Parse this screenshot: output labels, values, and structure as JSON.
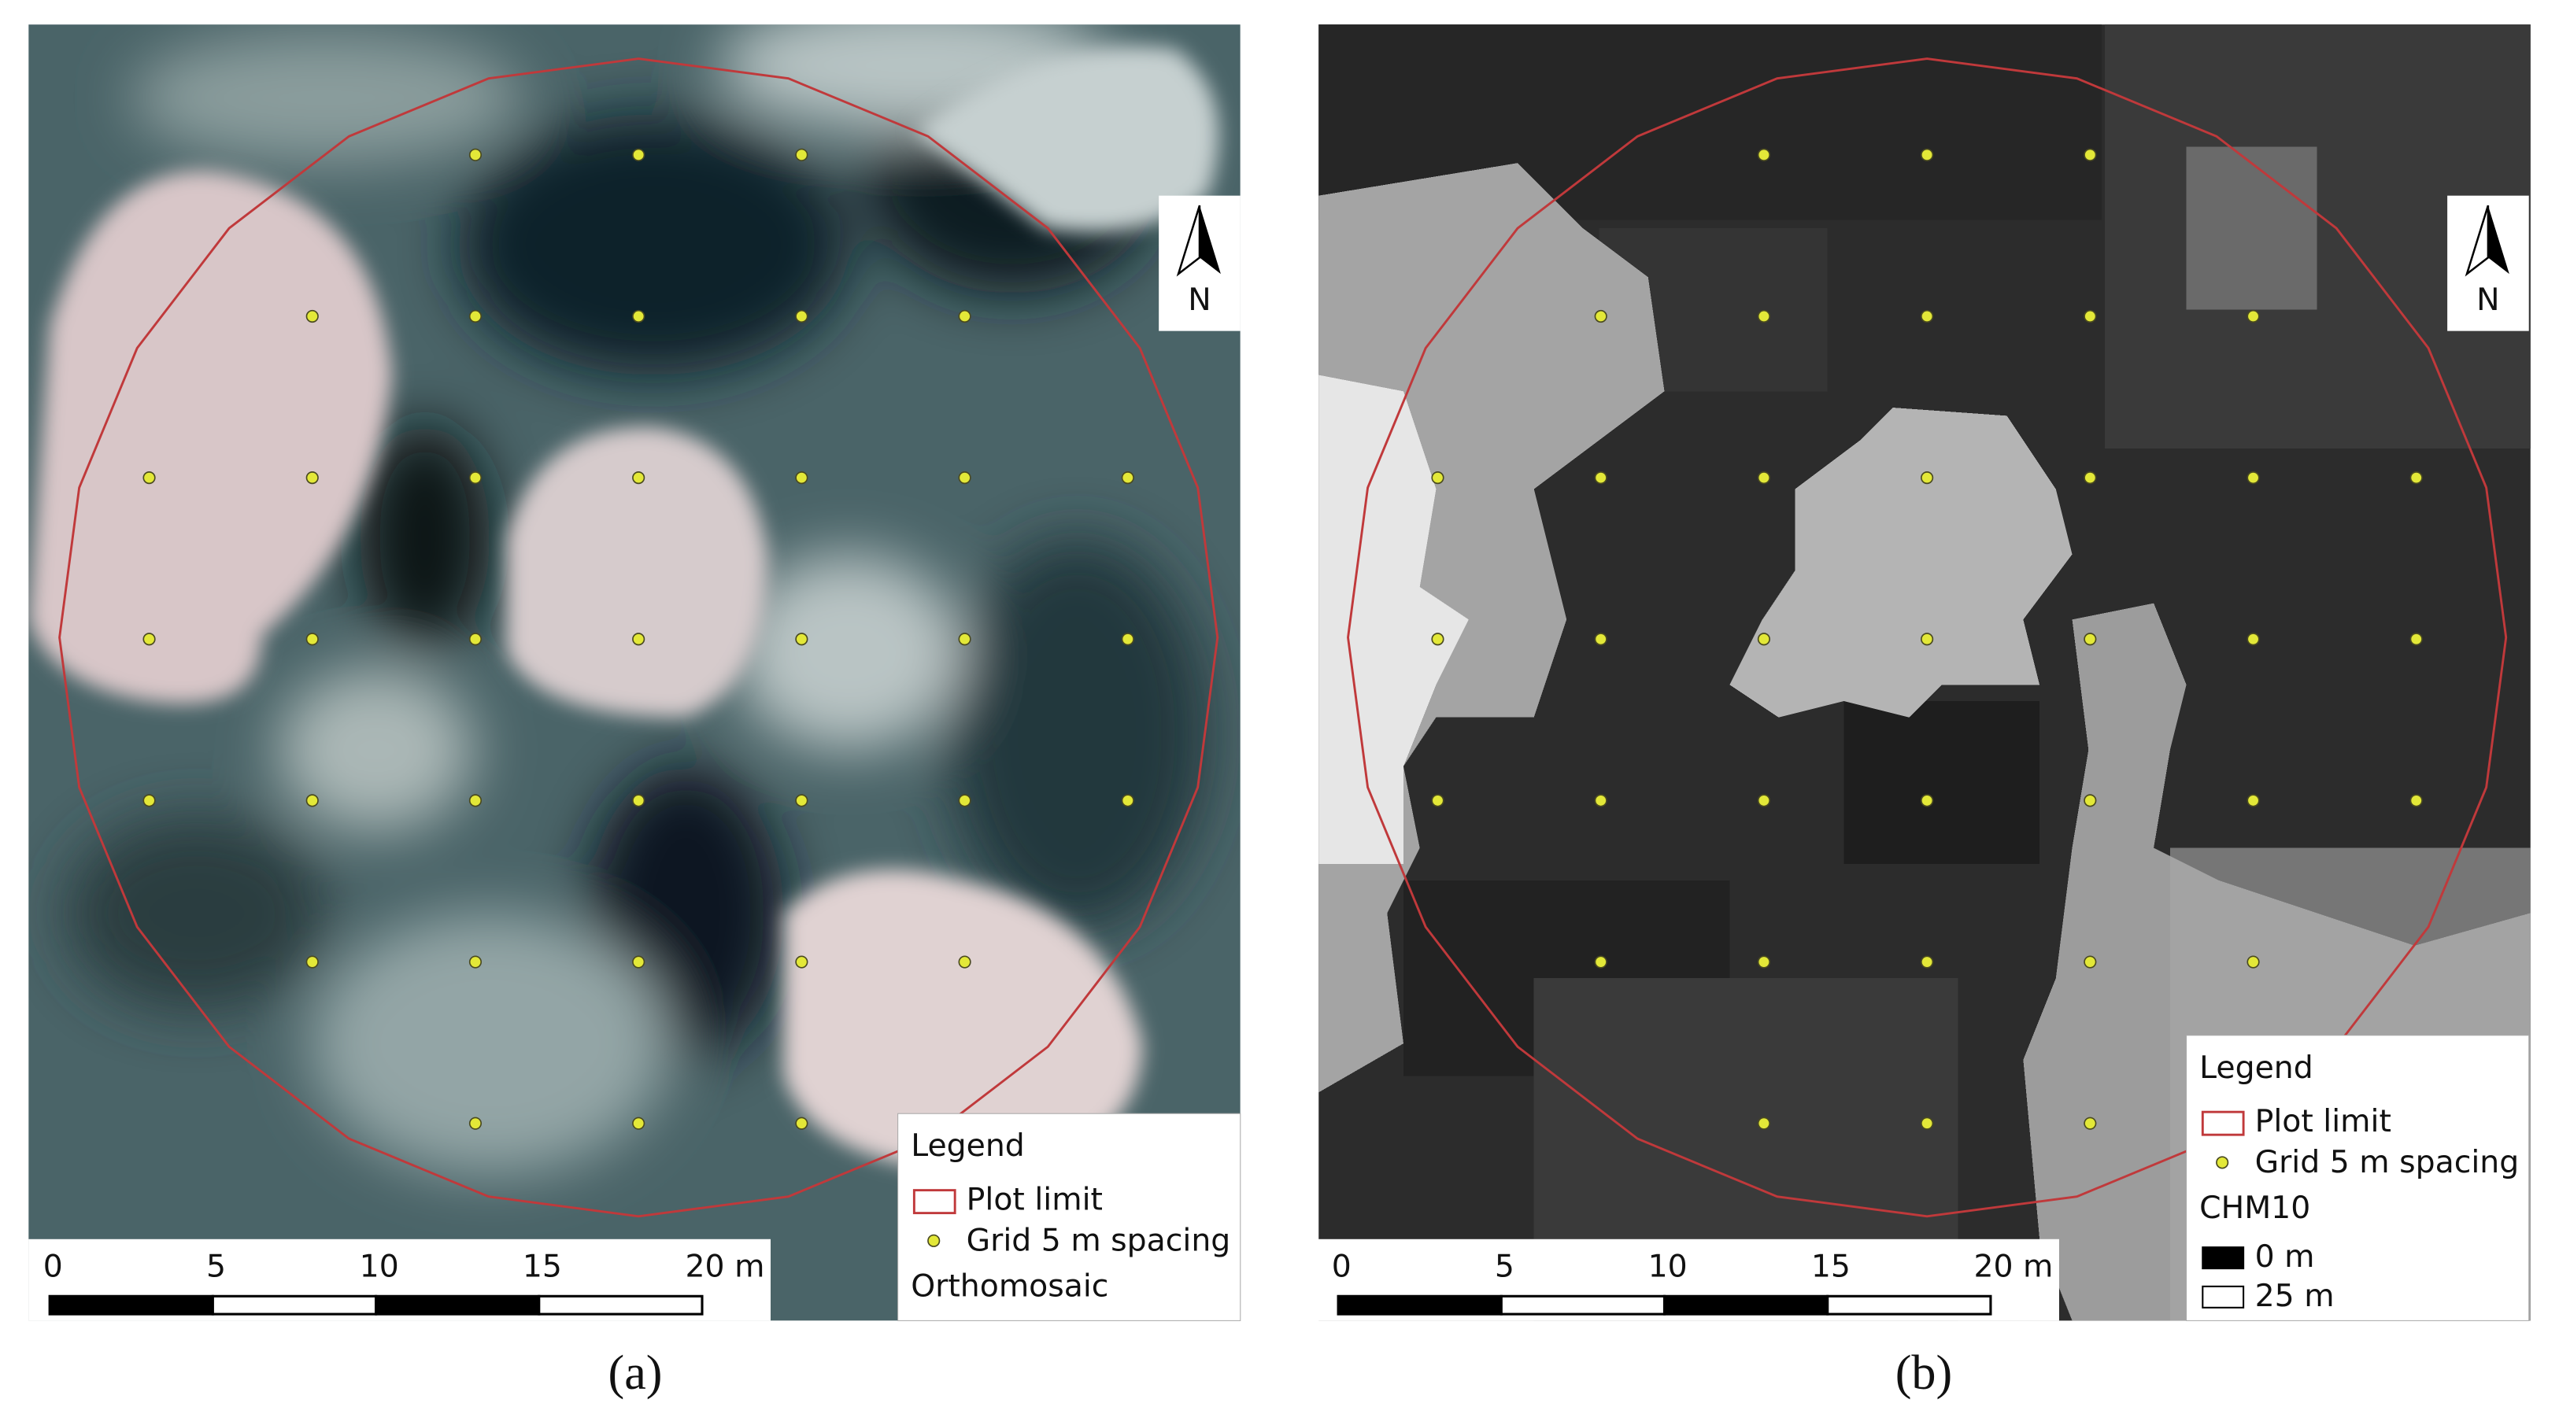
{
  "panels": [
    {
      "caption": "(a)",
      "north": "N",
      "scale_labels": [
        "0",
        "5",
        "10",
        "15",
        "20 m"
      ],
      "legend": {
        "title": "Legend",
        "items": [
          "Plot limit",
          "Grid 5 m spacing"
        ],
        "layer": "Orthomosaic"
      }
    },
    {
      "caption": "(b)",
      "north": "N",
      "scale_labels": [
        "0",
        "5",
        "10",
        "15",
        "20 m"
      ],
      "legend": {
        "title": "Legend",
        "items": [
          "Plot limit",
          "Grid 5 m spacing"
        ],
        "layer": "CHM10",
        "ramp": [
          "0 m",
          "25 m"
        ]
      }
    }
  ]
}
